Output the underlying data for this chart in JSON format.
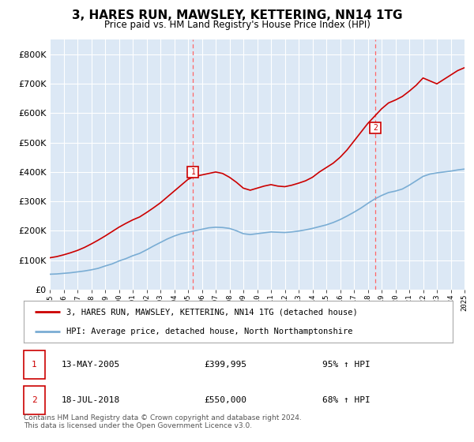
{
  "title": "3, HARES RUN, MAWSLEY, KETTERING, NN14 1TG",
  "subtitle": "Price paid vs. HM Land Registry's House Price Index (HPI)",
  "background_color": "#dce8f5",
  "plot_bg_color": "#dce8f5",
  "legend_line1": "3, HARES RUN, MAWSLEY, KETTERING, NN14 1TG (detached house)",
  "legend_line2": "HPI: Average price, detached house, North Northamptonshire",
  "sale1_date": "13-MAY-2005",
  "sale1_price": "£399,995",
  "sale1_hpi": "95% ↑ HPI",
  "sale2_date": "18-JUL-2018",
  "sale2_price": "£550,000",
  "sale2_hpi": "68% ↑ HPI",
  "footer": "Contains HM Land Registry data © Crown copyright and database right 2024.\nThis data is licensed under the Open Government Licence v3.0.",
  "hpi_color": "#7aadd4",
  "price_color": "#cc0000",
  "sale_marker_color": "#cc0000",
  "vline_color": "#ff6666",
  "ylim": [
    0,
    850000
  ],
  "yticks": [
    0,
    100000,
    200000,
    300000,
    400000,
    500000,
    600000,
    700000,
    800000
  ],
  "hpi_x": [
    1995,
    1995.5,
    1996,
    1996.5,
    1997,
    1997.5,
    1998,
    1998.5,
    1999,
    1999.5,
    2000,
    2000.5,
    2001,
    2001.5,
    2002,
    2002.5,
    2003,
    2003.5,
    2004,
    2004.5,
    2005,
    2005.5,
    2006,
    2006.5,
    2007,
    2007.5,
    2008,
    2008.5,
    2009,
    2009.5,
    2010,
    2010.5,
    2011,
    2011.5,
    2012,
    2012.5,
    2013,
    2013.5,
    2014,
    2014.5,
    2015,
    2015.5,
    2016,
    2016.5,
    2017,
    2017.5,
    2018,
    2018.5,
    2019,
    2019.5,
    2020,
    2020.5,
    2021,
    2021.5,
    2022,
    2022.5,
    2023,
    2023.5,
    2024,
    2024.5,
    2025
  ],
  "hpi_y": [
    52000,
    53000,
    55000,
    57000,
    60000,
    63000,
    67000,
    72000,
    80000,
    87000,
    97000,
    105000,
    115000,
    123000,
    135000,
    148000,
    160000,
    172000,
    182000,
    190000,
    195000,
    200000,
    205000,
    210000,
    212000,
    211000,
    208000,
    200000,
    190000,
    187000,
    190000,
    193000,
    196000,
    195000,
    194000,
    196000,
    199000,
    203000,
    208000,
    214000,
    220000,
    228000,
    238000,
    250000,
    263000,
    277000,
    293000,
    308000,
    320000,
    330000,
    335000,
    342000,
    355000,
    370000,
    385000,
    393000,
    397000,
    400000,
    403000,
    407000,
    410000
  ],
  "price_x": [
    1995,
    1995.5,
    1996,
    1996.5,
    1997,
    1997.5,
    1998,
    1998.5,
    1999,
    1999.5,
    2000,
    2000.5,
    2001,
    2001.5,
    2002,
    2002.5,
    2003,
    2003.5,
    2004,
    2004.5,
    2005,
    2005.5,
    2006,
    2006.5,
    2007,
    2007.5,
    2008,
    2008.5,
    2009,
    2009.5,
    2010,
    2010.5,
    2011,
    2011.5,
    2012,
    2012.5,
    2013,
    2013.5,
    2014,
    2014.5,
    2015,
    2015.5,
    2016,
    2016.5,
    2017,
    2017.5,
    2018,
    2018.5,
    2019,
    2019.5,
    2020,
    2020.5,
    2021,
    2021.5,
    2022,
    2022.5,
    2023,
    2023.5,
    2024,
    2024.5,
    2025
  ],
  "price_y": [
    108000,
    112000,
    118000,
    125000,
    133000,
    143000,
    155000,
    168000,
    182000,
    197000,
    212000,
    225000,
    237000,
    247000,
    262000,
    278000,
    295000,
    315000,
    335000,
    355000,
    375000,
    385000,
    390000,
    395000,
    400000,
    395000,
    382000,
    365000,
    345000,
    338000,
    345000,
    352000,
    357000,
    352000,
    350000,
    355000,
    362000,
    370000,
    382000,
    400000,
    415000,
    430000,
    450000,
    475000,
    505000,
    535000,
    565000,
    590000,
    615000,
    635000,
    645000,
    657000,
    675000,
    695000,
    720000,
    710000,
    700000,
    715000,
    730000,
    745000,
    755000
  ],
  "sale1_x": 2005.37,
  "sale1_y": 399995,
  "sale2_x": 2018.54,
  "sale2_y": 550000,
  "xmin": 1995,
  "xmax": 2025
}
